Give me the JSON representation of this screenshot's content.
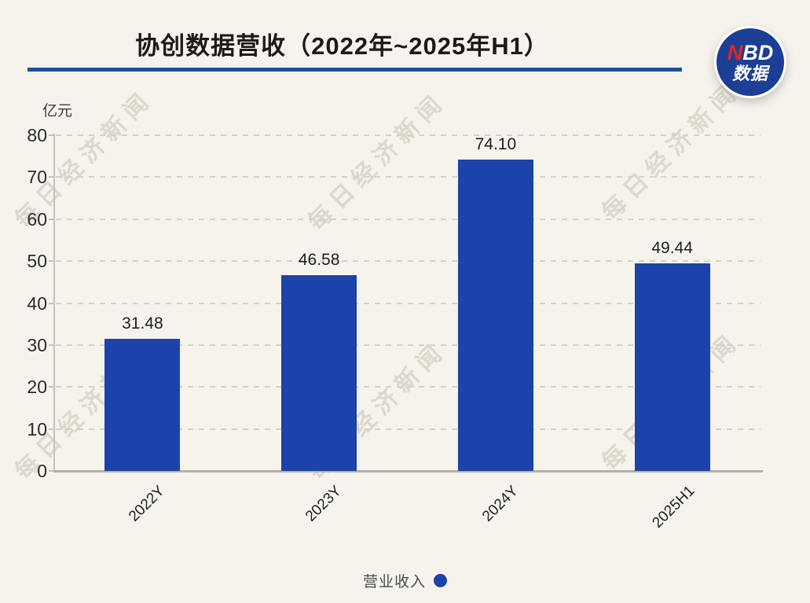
{
  "header": {
    "title": "协创数据营收（2022年~2025年H1）"
  },
  "logo": {
    "name": "NBD-shuju-logo",
    "line1_red": "N",
    "line1_white": "BD",
    "line2": "数据",
    "circle_color": "#1c3f95",
    "accent_red": "#e5251c"
  },
  "watermark": {
    "text": "每日经济新闻"
  },
  "chart_data": {
    "type": "bar",
    "title": "协创数据营收（2022年~2025年H1）",
    "unit_label": "亿元",
    "categories": [
      "2022Y",
      "2023Y",
      "2024Y",
      "2025H1"
    ],
    "values": [
      31.48,
      46.58,
      74.1,
      49.44
    ],
    "value_labels": [
      "31.48",
      "46.58",
      "74.10",
      "49.44"
    ],
    "series_name": "营业收入",
    "xlabel": "",
    "ylabel": "亿元",
    "ylim": [
      0,
      80
    ],
    "yticks": [
      0,
      10,
      20,
      30,
      40,
      50,
      60,
      70,
      80
    ],
    "grid": "horizontal-dashed",
    "bar_color": "#1c43a9",
    "legend_position": "bottom-center"
  },
  "legend": {
    "label": "营业收入",
    "marker_color": "#1c43a9"
  }
}
